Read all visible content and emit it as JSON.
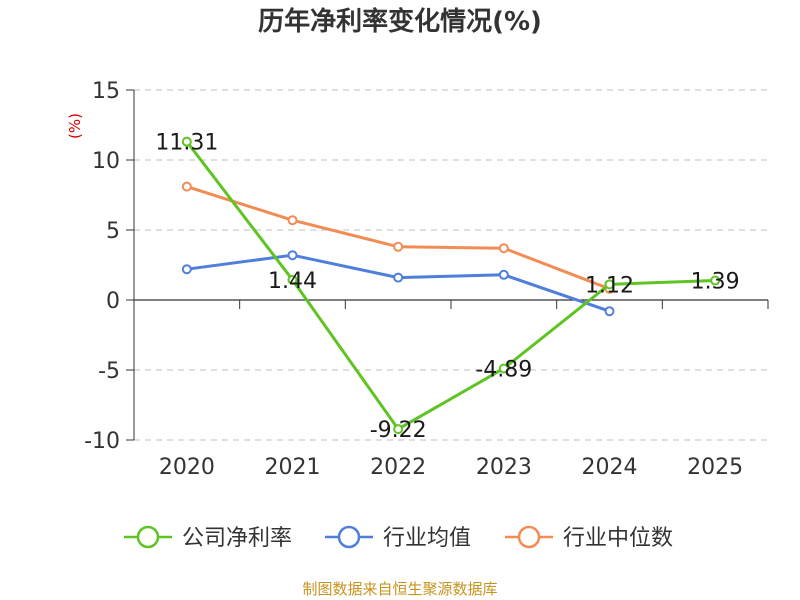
{
  "chart_data": {
    "type": "line",
    "title": "历年净利率变化情况(%)",
    "ylabel": "(%)",
    "xlabel": "",
    "categories": [
      "2020",
      "2021",
      "2022",
      "2023",
      "2024",
      "2025"
    ],
    "ylim": [
      -10,
      15
    ],
    "yticks": [
      15,
      10,
      5,
      0,
      -5,
      -10
    ],
    "grid": true,
    "legend_position": "bottom",
    "series": [
      {
        "name": "公司净利率",
        "color": "#5ec423",
        "values": [
          11.31,
          1.44,
          -9.22,
          -4.89,
          1.12,
          1.39
        ],
        "labels": [
          "11.31",
          "1.44",
          "-9.22",
          "-4.89",
          "1.12",
          "1.39"
        ]
      },
      {
        "name": "行业均值",
        "color": "#4f7fdb",
        "values": [
          2.2,
          3.2,
          1.6,
          1.8,
          -0.8,
          null
        ]
      },
      {
        "name": "行业中位数",
        "color": "#f28c55",
        "values": [
          8.1,
          5.7,
          3.8,
          3.7,
          0.8,
          null
        ]
      }
    ]
  },
  "footer": {
    "source": "制图数据来自恒生聚源数据库"
  }
}
